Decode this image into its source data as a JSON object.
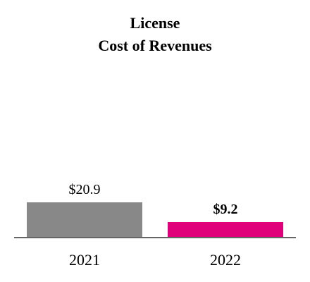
{
  "chart_data": {
    "type": "bar",
    "title_line1": "License",
    "title_line2": "Cost of Revenues",
    "categories": [
      "2021",
      "2022"
    ],
    "values": [
      20.9,
      9.2
    ],
    "value_labels": [
      "$20.9",
      "$9.2"
    ],
    "bar_colors": [
      "#888888",
      "#E0007A"
    ],
    "value_label_bold": [
      false,
      true
    ],
    "ylim": [
      0,
      100
    ],
    "xlabel": "",
    "ylabel": "",
    "grid": false
  }
}
